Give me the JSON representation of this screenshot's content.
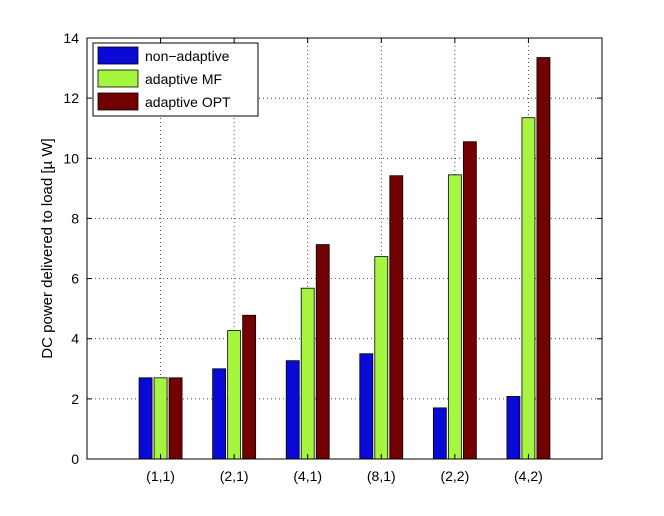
{
  "chart_data": {
    "type": "bar",
    "title": "",
    "xlabel": "",
    "ylabel": "DC power delivered to load [µ W]",
    "categories": [
      "(1,1)",
      "(2,1)",
      "(4,1)",
      "(8,1)",
      "(2,2)",
      "(4,2)"
    ],
    "series": [
      {
        "name": "non−adaptive",
        "color": "#0a0ad6",
        "values": [
          2.7,
          3.0,
          3.27,
          3.5,
          1.7,
          2.08
        ]
      },
      {
        "name": "adaptive MF",
        "color": "#a6f53e",
        "values": [
          2.7,
          4.27,
          5.68,
          6.73,
          9.45,
          11.35
        ]
      },
      {
        "name": "adaptive OPT",
        "color": "#730000",
        "values": [
          2.7,
          4.78,
          7.13,
          9.42,
          10.55,
          13.35
        ]
      }
    ],
    "ylim": [
      0,
      14
    ],
    "yticks": [
      "0",
      "2",
      "4",
      "6",
      "8",
      "10",
      "12",
      "14"
    ],
    "grid": true,
    "legend_position": "top-left"
  }
}
